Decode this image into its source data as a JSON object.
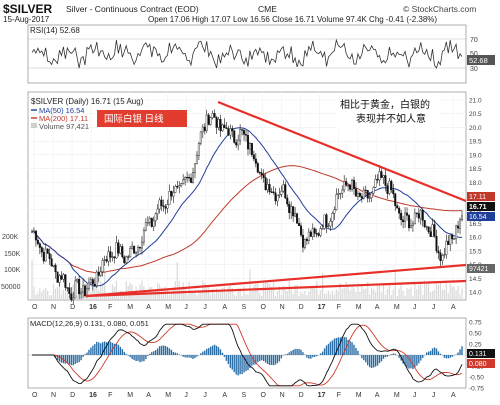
{
  "header": {
    "symbol": "$SILVER",
    "name": "Silver - Continuous Contract (EOD)",
    "exchange": "CME",
    "date": "15-Aug-2017",
    "ohlc": "Open 17.06  High 17.07  Low 16.56  Close 16.71  Volume 97.4K  Chg -0.41 (-2.38%)",
    "watermark": "© StockCharts.com"
  },
  "rsi": {
    "label": "RSI(14) 52.68",
    "current": 52.68,
    "levels": [
      70,
      30
    ],
    "ticks": [
      "70",
      "50",
      "30"
    ],
    "value_box": "52.68"
  },
  "price": {
    "legend_title": "$SILVER (Daily) 16.71 (15 Aug)",
    "legend_ma50": "MA(50) 16.54",
    "legend_ma200": "MA(200) 17.11",
    "legend_volume": "Volume 97,421",
    "annotation_cn": "相比于黄金，白银的表现并不如人意",
    "badge_cn": "国际白银  日线",
    "y_ticks": [
      "21.0",
      "20.5",
      "20.0",
      "19.5",
      "19.0",
      "18.5",
      "18.0",
      "17.5",
      "17.0",
      "16.5",
      "16.0",
      "15.5",
      "15.0",
      "14.5",
      "14.0"
    ],
    "value_boxes": [
      "17.11",
      "16.71",
      "16.54"
    ],
    "vol_ticks": [
      "200K",
      "150K",
      "100K",
      "50000"
    ],
    "vol_box": "97421"
  },
  "macd": {
    "label": "MACD(12,26,9) 0.131, 0.080, 0.051",
    "ticks": [
      "0.75",
      "0.50",
      "0.25",
      "0.00",
      "-0.25",
      "-0.50",
      "-0.75"
    ],
    "value_boxes": [
      "0.131",
      "0.080"
    ]
  },
  "x_axis": {
    "labels": [
      "O",
      "N",
      "D",
      "16",
      "F",
      "M",
      "A",
      "M",
      "J",
      "J",
      "A",
      "S",
      "O",
      "N",
      "D",
      "17",
      "F",
      "M",
      "A",
      "M",
      "J",
      "J",
      "A"
    ]
  },
  "colors": {
    "candle": "#111111",
    "ma50": "#1f3f9a",
    "ma200": "#c0392b",
    "trendline": "#e8302a",
    "volume": "#d9d9d9",
    "rsi_line": "#333333",
    "macd_line": "#111111",
    "signal_line": "#d0392b",
    "histogram": "#2b6ea6",
    "badge": "#e23c2f"
  },
  "chart_data": {
    "type": "line",
    "title": "$SILVER (Daily) 16.71 (15 Aug)",
    "series": [
      {
        "name": "$SILVER",
        "x": [
          "2015-10",
          "2015-11",
          "2015-12",
          "2016-01",
          "2016-02",
          "2016-03",
          "2016-04",
          "2016-05",
          "2016-06",
          "2016-07",
          "2016-08",
          "2016-09",
          "2016-10",
          "2016-11",
          "2016-12",
          "2017-01",
          "2017-02",
          "2017-03",
          "2017-04",
          "2017-05",
          "2017-06",
          "2017-07",
          "2017-08"
        ],
        "values": [
          16.2,
          15.0,
          14.0,
          14.2,
          15.5,
          15.3,
          16.5,
          17.5,
          18.0,
          20.5,
          19.8,
          19.6,
          17.8,
          17.6,
          15.8,
          16.5,
          18.0,
          17.3,
          18.2,
          16.5,
          16.8,
          15.3,
          16.71
        ]
      },
      {
        "name": "MA(50)",
        "current": 16.54
      },
      {
        "name": "MA(200)",
        "current": 17.11
      }
    ],
    "volume_current": 97421,
    "ylim": [
      14.0,
      21.0
    ]
  }
}
